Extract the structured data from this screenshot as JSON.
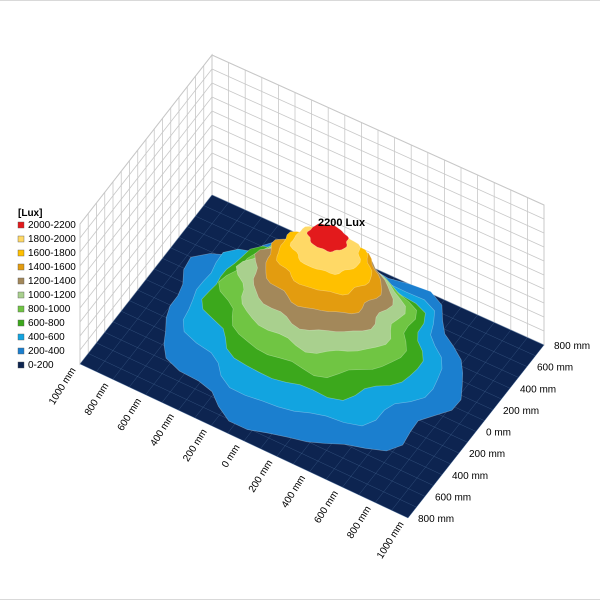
{
  "chart_data": {
    "type": "surface-3d",
    "unit_label": "[Lux]",
    "peak_label": "2200 Lux",
    "peak_value": 2200,
    "zlim": [
      0,
      2200
    ],
    "x_ticks": [
      "1000 mm",
      "800 mm",
      "600 mm",
      "400 mm",
      "200 mm",
      "0 mm",
      "200 mm",
      "400 mm",
      "600 mm",
      "800 mm",
      "1000 mm"
    ],
    "y_ticks": [
      "800 mm",
      "600 mm",
      "400 mm",
      "200 mm",
      "0 mm",
      "200 mm",
      "400 mm",
      "600 mm",
      "800 mm"
    ],
    "bands": [
      {
        "range": "2000-2200",
        "color": "#e31a1c"
      },
      {
        "range": "1800-2000",
        "color": "#ffd966"
      },
      {
        "range": "1600-1800",
        "color": "#ffc000"
      },
      {
        "range": "1400-1600",
        "color": "#e39c0f"
      },
      {
        "range": "1200-1400",
        "color": "#a3885a"
      },
      {
        "range": "1000-1200",
        "color": "#a9d08e"
      },
      {
        "range": "800-1000",
        "color": "#70c543"
      },
      {
        "range": "600-800",
        "color": "#3ca81c"
      },
      {
        "range": "400-600",
        "color": "#12a4e0"
      },
      {
        "range": "200-400",
        "color": "#1b7fcf"
      },
      {
        "range": "0-200",
        "color": "#0d2450"
      }
    ],
    "contours_mm": [
      {
        "level": 200,
        "rx": 820,
        "ry": 760,
        "cx": 20,
        "cy": 0
      },
      {
        "level": 400,
        "rx": 700,
        "ry": 640,
        "cx": 30,
        "cy": 0
      },
      {
        "level": 600,
        "rx": 600,
        "ry": 540,
        "cx": 40,
        "cy": 0
      },
      {
        "level": 800,
        "rx": 520,
        "ry": 480,
        "cx": 50,
        "cy": 0
      },
      {
        "level": 1000,
        "rx": 450,
        "ry": 410,
        "cx": 60,
        "cy": 0
      },
      {
        "level": 1200,
        "rx": 380,
        "ry": 350,
        "cx": 70,
        "cy": 0
      },
      {
        "level": 1400,
        "rx": 320,
        "ry": 290,
        "cx": 80,
        "cy": 0
      },
      {
        "level": 1600,
        "rx": 260,
        "ry": 230,
        "cx": 90,
        "cy": 0
      },
      {
        "level": 1800,
        "rx": 190,
        "ry": 170,
        "cx": 100,
        "cy": 0
      },
      {
        "level": 2000,
        "rx": 110,
        "ry": 100,
        "cx": 110,
        "cy": 0
      }
    ],
    "grid": true
  }
}
